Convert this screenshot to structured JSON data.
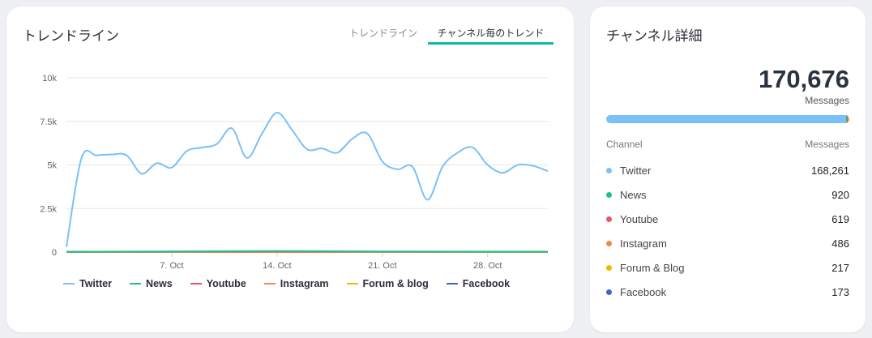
{
  "trend_card": {
    "title": "トレンドライン",
    "tabs": [
      {
        "label": "トレンドライン",
        "active": false
      },
      {
        "label": "チャンネル毎のトレンド",
        "active": true
      }
    ]
  },
  "detail_card": {
    "title": "チャンネル詳細",
    "total": "170,676",
    "total_unit": "Messages",
    "col_channel": "Channel",
    "col_messages": "Messages",
    "channels": [
      {
        "name": "Twitter",
        "value": "168,261",
        "count": 168261,
        "color": "#7cc0f7"
      },
      {
        "name": "News",
        "value": "920",
        "count": 920,
        "color": "#1dbf8e"
      },
      {
        "name": "Youtube",
        "value": "619",
        "count": 619,
        "color": "#e8546a"
      },
      {
        "name": "Instagram",
        "value": "486",
        "count": 486,
        "color": "#f08a4b"
      },
      {
        "name": "Forum & Blog",
        "value": "217",
        "count": 217,
        "color": "#f5b800"
      },
      {
        "name": "Facebook",
        "value": "173",
        "count": 173,
        "color": "#3f62d6"
      }
    ]
  },
  "chart_data": {
    "type": "line",
    "ylim": [
      0,
      10000
    ],
    "y_ticks": [
      0,
      2500,
      5000,
      7500,
      10000
    ],
    "y_tick_labels": [
      "0",
      "2.5k",
      "5k",
      "7.5k",
      "10k"
    ],
    "x_start": "2023-09-30",
    "x_end": "2023-11-01",
    "x_ticks": [
      {
        "date": "2023-10-07",
        "label": "7. Oct"
      },
      {
        "date": "2023-10-14",
        "label": "14. Oct"
      },
      {
        "date": "2023-10-21",
        "label": "21. Oct"
      },
      {
        "date": "2023-10-28",
        "label": "28. Oct"
      }
    ],
    "grid": true,
    "legend": "bottom",
    "series": [
      {
        "name": "Twitter",
        "color": "#7cc0f7",
        "points": [
          [
            "2023-09-30",
            300
          ],
          [
            "2023-10-01",
            5400
          ],
          [
            "2023-10-02",
            5550
          ],
          [
            "2023-10-03",
            5600
          ],
          [
            "2023-10-04",
            5550
          ],
          [
            "2023-10-05",
            4500
          ],
          [
            "2023-10-06",
            5100
          ],
          [
            "2023-10-07",
            4850
          ],
          [
            "2023-10-08",
            5800
          ],
          [
            "2023-10-09",
            6000
          ],
          [
            "2023-10-10",
            6200
          ],
          [
            "2023-10-11",
            7100
          ],
          [
            "2023-10-12",
            5400
          ],
          [
            "2023-10-13",
            6800
          ],
          [
            "2023-10-14",
            8000
          ],
          [
            "2023-10-15",
            7000
          ],
          [
            "2023-10-16",
            5900
          ],
          [
            "2023-10-17",
            5950
          ],
          [
            "2023-10-18",
            5700
          ],
          [
            "2023-10-19",
            6500
          ],
          [
            "2023-10-20",
            6800
          ],
          [
            "2023-10-21",
            5200
          ],
          [
            "2023-10-22",
            4750
          ],
          [
            "2023-10-23",
            4900
          ],
          [
            "2023-10-24",
            3000
          ],
          [
            "2023-10-25",
            4900
          ],
          [
            "2023-10-26",
            5700
          ],
          [
            "2023-10-27",
            6000
          ],
          [
            "2023-10-28",
            5000
          ],
          [
            "2023-10-29",
            4550
          ],
          [
            "2023-10-30",
            5000
          ],
          [
            "2023-10-31",
            4950
          ],
          [
            "2023-11-01",
            4650
          ]
        ]
      },
      {
        "name": "News",
        "color": "#1dbf8e",
        "points": [
          [
            "2023-09-30",
            20
          ],
          [
            "2023-10-09",
            40
          ],
          [
            "2023-10-14",
            60
          ],
          [
            "2023-10-21",
            30
          ],
          [
            "2023-11-01",
            25
          ]
        ]
      },
      {
        "name": "Youtube",
        "color": "#e8546a",
        "points": [
          [
            "2023-09-30",
            15
          ],
          [
            "2023-10-14",
            30
          ],
          [
            "2023-11-01",
            20
          ]
        ]
      },
      {
        "name": "Instagram",
        "color": "#f08a4b",
        "points": [
          [
            "2023-09-30",
            15
          ],
          [
            "2023-10-14",
            20
          ],
          [
            "2023-11-01",
            15
          ]
        ]
      },
      {
        "name": "Forum & blog",
        "color": "#f5b800",
        "points": [
          [
            "2023-09-30",
            7
          ],
          [
            "2023-11-01",
            7
          ]
        ]
      },
      {
        "name": "Facebook",
        "color": "#3f62d6",
        "points": [
          [
            "2023-09-30",
            5
          ],
          [
            "2023-10-14",
            10
          ],
          [
            "2023-11-01",
            5
          ]
        ]
      }
    ]
  }
}
